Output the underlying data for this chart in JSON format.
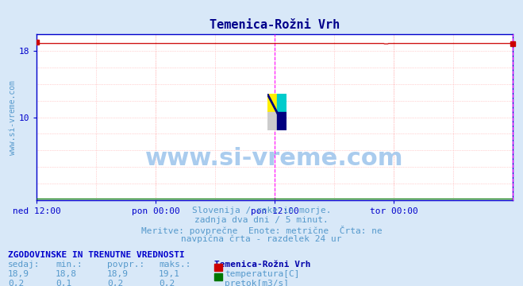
{
  "title": "Temenica-Rožni Vrh",
  "title_color": "#00008B",
  "title_fontsize": 11,
  "bg_color": "#d8e8f8",
  "plot_bg_color": "#ffffff",
  "grid_color": "#ffaaaa",
  "axis_color": "#0000cc",
  "tick_color": "#0000cc",
  "tick_fontsize": 8,
  "watermark_text": "www.si-vreme.com",
  "watermark_color": "#aaccee",
  "watermark_fontsize": 22,
  "ylabel_text": "www.si-vreme.com",
  "ylabel_color": "#5599cc",
  "ylabel_fontsize": 7,
  "xticklabels": [
    "ned 12:00",
    "pon 00:00",
    "pon 12:00",
    "tor 00:00"
  ],
  "xtick_positions": [
    0.0,
    0.25,
    0.5,
    0.75
  ],
  "ylim": [
    0,
    20
  ],
  "yticks": [
    10,
    18
  ],
  "temp_color": "#cc0000",
  "pretok_color": "#007700",
  "vline_color": "#ff00ff",
  "vline_pos": 0.5,
  "endpoint_color": "#cc0000",
  "subtitle_lines": [
    "Slovenija / reke in morje.",
    "zadnja dva dni / 5 minut.",
    "Meritve: povprečne  Enote: metrične  Črta: ne",
    "navpična črta - razdelek 24 ur"
  ],
  "subtitle_color": "#5599cc",
  "subtitle_fontsize": 8,
  "table_header": "ZGODOVINSKE IN TRENUTNE VREDNOSTI",
  "table_header_color": "#0000cc",
  "table_header_fontsize": 8,
  "table_cols": [
    "sedaj:",
    "min.:",
    "povpr.:",
    "maks.:"
  ],
  "table_col_color": "#5599cc",
  "table_col_fontsize": 8,
  "station_name": "Temenica-Rožni Vrh",
  "station_name_color": "#0000aa",
  "station_fontsize": 8,
  "temp_vals": [
    "18,9",
    "18,8",
    "18,9",
    "19,1"
  ],
  "pretok_vals": [
    "0,2",
    "0,1",
    "0,2",
    "0,2"
  ],
  "legend_items": [
    {
      "label": "temperatura[C]",
      "color": "#cc0000"
    },
    {
      "label": "pretok[m3/s]",
      "color": "#007700"
    }
  ],
  "legend_fontsize": 8,
  "legend_color": "#5599cc",
  "logo_colors": [
    "#ffee00",
    "#00cccc",
    "#cccccc",
    "#000080"
  ]
}
